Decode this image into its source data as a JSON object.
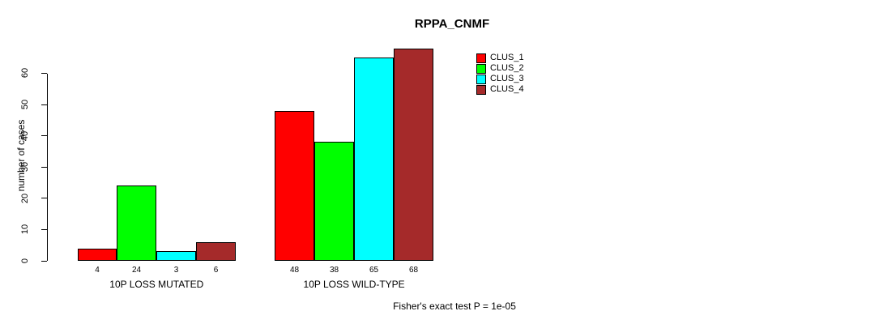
{
  "window": {
    "background": "#FFFFFF",
    "text_color": "#000000"
  },
  "chart_data": {
    "type": "bar",
    "title": "RPPA_CNMF",
    "ylabel": "number of cases",
    "xlabel": "",
    "categories": [
      "10P LOSS MUTATED",
      "10P LOSS WILD-TYPE"
    ],
    "series": [
      {
        "name": "CLUS_1",
        "color": "#FF0000",
        "values": [
          4,
          48
        ]
      },
      {
        "name": "CLUS_2",
        "color": "#00FF00",
        "values": [
          24,
          38
        ]
      },
      {
        "name": "CLUS_3",
        "color": "#00FFFF",
        "values": [
          3,
          65
        ]
      },
      {
        "name": "CLUS_4",
        "color": "#A52A2A",
        "values": [
          6,
          68
        ]
      }
    ],
    "yticks": [
      0,
      10,
      20,
      30,
      40,
      50,
      60
    ],
    "ylim": [
      0,
      68
    ],
    "grid": false,
    "values_shown_under_bars": true,
    "legend": {
      "position": "top-right",
      "entries": [
        "CLUS_1",
        "CLUS_2",
        "CLUS_3",
        "CLUS_4"
      ]
    },
    "annotation": "Fisher's exact test P = 1e-05"
  }
}
